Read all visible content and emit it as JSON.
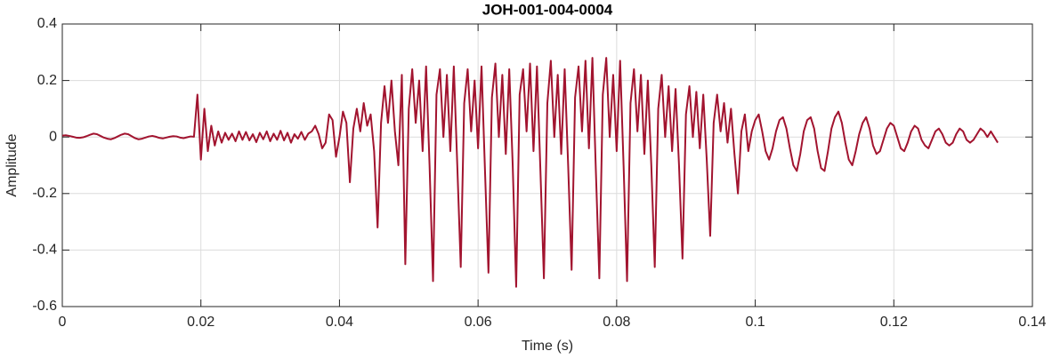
{
  "chart_data": {
    "type": "line",
    "title": "JOH-001-004-0004",
    "x_label": "Time (s)",
    "y_label": "Amplitude",
    "color": "#a2142f",
    "grid": true,
    "xlim": [
      0,
      0.14
    ],
    "ylim": [
      -0.6,
      0.4
    ],
    "xticks": [
      0,
      0.02,
      0.04,
      0.06,
      0.08,
      0.1,
      0.12,
      0.14
    ],
    "yticks": [
      -0.6,
      -0.4,
      -0.2,
      0,
      0.2,
      0.4
    ],
    "x": [
      0,
      0.0005,
      0.001,
      0.0015,
      0.002,
      0.0025,
      0.003,
      0.0035,
      0.004,
      0.0045,
      0.005,
      0.0055,
      0.006,
      0.0065,
      0.007,
      0.0075,
      0.008,
      0.0085,
      0.009,
      0.0095,
      0.01,
      0.0105,
      0.011,
      0.0115,
      0.012,
      0.0125,
      0.013,
      0.0135,
      0.014,
      0.0145,
      0.015,
      0.0155,
      0.016,
      0.0165,
      0.017,
      0.0175,
      0.018,
      0.0185,
      0.019,
      0.0195,
      0.02,
      0.0205,
      0.021,
      0.0215,
      0.022,
      0.0225,
      0.023,
      0.0235,
      0.024,
      0.0245,
      0.025,
      0.0255,
      0.026,
      0.0265,
      0.027,
      0.0275,
      0.028,
      0.0285,
      0.029,
      0.0295,
      0.03,
      0.0305,
      0.031,
      0.0315,
      0.032,
      0.0325,
      0.033,
      0.0335,
      0.034,
      0.0345,
      0.035,
      0.0355,
      0.036,
      0.0365,
      0.037,
      0.0375,
      0.038,
      0.0385,
      0.039,
      0.0395,
      0.04,
      0.0405,
      0.041,
      0.0415,
      0.042,
      0.0425,
      0.043,
      0.0435,
      0.044,
      0.0445,
      0.045,
      0.0455,
      0.046,
      0.0465,
      0.047,
      0.0475,
      0.048,
      0.0485,
      0.049,
      0.0495,
      0.05,
      0.0505,
      0.051,
      0.0515,
      0.052,
      0.0525,
      0.053,
      0.0535,
      0.054,
      0.0545,
      0.055,
      0.0555,
      0.056,
      0.0565,
      0.057,
      0.0575,
      0.058,
      0.0585,
      0.059,
      0.0595,
      0.06,
      0.0605,
      0.061,
      0.0615,
      0.062,
      0.0625,
      0.063,
      0.0635,
      0.064,
      0.0645,
      0.065,
      0.0655,
      0.066,
      0.0665,
      0.067,
      0.0675,
      0.068,
      0.0685,
      0.069,
      0.0695,
      0.07,
      0.0705,
      0.071,
      0.0715,
      0.072,
      0.0725,
      0.073,
      0.0735,
      0.074,
      0.0745,
      0.075,
      0.0755,
      0.076,
      0.0765,
      0.077,
      0.0775,
      0.078,
      0.0785,
      0.079,
      0.0795,
      0.08,
      0.0805,
      0.081,
      0.0815,
      0.082,
      0.0825,
      0.083,
      0.0835,
      0.084,
      0.0845,
      0.085,
      0.0855,
      0.086,
      0.0865,
      0.087,
      0.0875,
      0.088,
      0.0885,
      0.089,
      0.0895,
      0.09,
      0.0905,
      0.091,
      0.0915,
      0.092,
      0.0925,
      0.093,
      0.0935,
      0.094,
      0.0945,
      0.095,
      0.0955,
      0.096,
      0.0965,
      0.097,
      0.0975,
      0.098,
      0.0985,
      0.099,
      0.0995,
      0.1,
      0.1005,
      0.101,
      0.1015,
      0.102,
      0.1025,
      0.103,
      0.1035,
      0.104,
      0.1045,
      0.105,
      0.1055,
      0.106,
      0.1065,
      0.107,
      0.1075,
      0.108,
      0.1085,
      0.109,
      0.1095,
      0.11,
      0.1105,
      0.111,
      0.1115,
      0.112,
      0.1125,
      0.113,
      0.1135,
      0.114,
      0.1145,
      0.115,
      0.1155,
      0.116,
      0.1165,
      0.117,
      0.1175,
      0.118,
      0.1185,
      0.119,
      0.1195,
      0.12,
      0.1205,
      0.121,
      0.1215,
      0.122,
      0.1225,
      0.123,
      0.1235,
      0.124,
      0.1245,
      0.125,
      0.1255,
      0.126,
      0.1265,
      0.127,
      0.1275,
      0.128,
      0.1285,
      0.129,
      0.1295,
      0.13,
      0.1305,
      0.131,
      0.1315,
      0.132,
      0.1325,
      0.133,
      0.1335,
      0.134,
      0.1345,
      0.135
    ],
    "values": [
      0.005,
      0.006,
      0.004,
      0.001,
      -0.002,
      -0.003,
      -0.001,
      0.003,
      0.008,
      0.012,
      0.01,
      0.004,
      -0.002,
      -0.006,
      -0.008,
      -0.004,
      0.002,
      0.008,
      0.012,
      0.01,
      0.003,
      -0.004,
      -0.008,
      -0.006,
      -0.002,
      0.002,
      0.004,
      0.001,
      -0.003,
      -0.005,
      -0.002,
      0.001,
      0.003,
      0.002,
      -0.002,
      -0.004,
      -0.001,
      0.002,
      0.001,
      0.15,
      -0.08,
      0.1,
      -0.05,
      0.04,
      -0.03,
      0.02,
      -0.02,
      0.015,
      -0.01,
      0.012,
      -0.015,
      0.02,
      -0.01,
      0.018,
      -0.012,
      0.01,
      -0.018,
      0.015,
      -0.008,
      0.02,
      -0.015,
      0.012,
      -0.01,
      0.022,
      -0.012,
      0.015,
      -0.02,
      0.01,
      -0.006,
      0.018,
      -0.01,
      0.012,
      0.02,
      0.04,
      0.01,
      -0.04,
      -0.02,
      0.08,
      0.06,
      -0.07,
      0.0,
      0.09,
      0.05,
      -0.16,
      0.03,
      0.1,
      0.02,
      0.12,
      0.04,
      0.08,
      -0.05,
      -0.32,
      0.05,
      0.18,
      0.05,
      0.2,
      0.02,
      -0.1,
      0.22,
      -0.45,
      0.1,
      0.24,
      0.05,
      0.2,
      -0.05,
      0.25,
      -0.1,
      -0.51,
      0.15,
      0.24,
      0.0,
      0.22,
      -0.05,
      0.25,
      -0.1,
      -0.46,
      0.12,
      0.24,
      0.02,
      0.2,
      -0.04,
      0.25,
      -0.12,
      -0.48,
      0.14,
      0.26,
      0.0,
      0.22,
      -0.06,
      0.24,
      -0.1,
      -0.53,
      0.15,
      0.24,
      0.02,
      0.26,
      -0.05,
      0.25,
      -0.12,
      -0.5,
      0.12,
      0.27,
      0.0,
      0.22,
      -0.06,
      0.24,
      -0.1,
      -0.47,
      0.14,
      0.25,
      0.02,
      0.27,
      -0.04,
      0.28,
      -0.12,
      -0.5,
      0.15,
      0.28,
      0.0,
      0.22,
      -0.05,
      0.27,
      -0.1,
      -0.51,
      0.12,
      0.24,
      0.02,
      0.22,
      -0.06,
      0.2,
      -0.1,
      -0.46,
      0.1,
      0.22,
      0.0,
      0.18,
      -0.05,
      0.17,
      -0.1,
      -0.43,
      0.08,
      0.18,
      0.0,
      0.16,
      -0.04,
      0.15,
      -0.08,
      -0.35,
      0.05,
      0.15,
      0.02,
      0.12,
      -0.02,
      0.1,
      -0.06,
      -0.2,
      0.02,
      0.08,
      -0.05,
      0.02,
      0.06,
      0.08,
      0.02,
      -0.05,
      -0.08,
      -0.04,
      0.02,
      0.06,
      0.07,
      0.03,
      -0.04,
      -0.1,
      -0.12,
      -0.06,
      0.02,
      0.06,
      0.07,
      0.03,
      -0.05,
      -0.11,
      -0.12,
      -0.05,
      0.03,
      0.07,
      0.09,
      0.05,
      -0.02,
      -0.08,
      -0.1,
      -0.05,
      0.01,
      0.05,
      0.07,
      0.03,
      -0.03,
      -0.06,
      -0.05,
      -0.01,
      0.03,
      0.05,
      0.04,
      0.0,
      -0.04,
      -0.05,
      -0.02,
      0.02,
      0.04,
      0.03,
      -0.01,
      -0.03,
      -0.04,
      -0.01,
      0.02,
      0.03,
      0.01,
      -0.02,
      -0.03,
      -0.02,
      0.01,
      0.03,
      0.02,
      -0.01,
      -0.02,
      -0.01,
      0.01,
      0.03,
      0.02,
      0.0,
      0.02,
      0.0,
      -0.02
    ]
  }
}
